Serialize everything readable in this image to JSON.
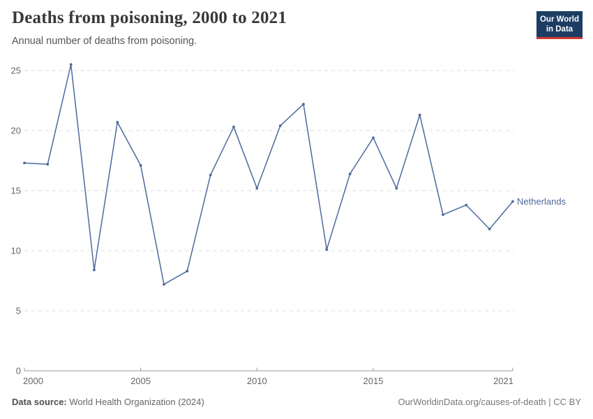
{
  "header": {
    "title": "Deaths from poisoning, 2000 to 2021",
    "subtitle": "Annual number of deaths from poisoning.",
    "logo": {
      "line1": "Our World",
      "line2": "in Data",
      "bg": "#1d3d63",
      "stripe": "#d0392e"
    }
  },
  "footer": {
    "source_label": "Data source:",
    "source_value": " World Health Organization (2024)",
    "link": "OurWorldinData.org/causes-of-death | CC BY"
  },
  "chart_data": {
    "type": "line",
    "title": "Deaths from poisoning, 2000 to 2021",
    "subtitle": "Annual number of deaths from poisoning.",
    "x": [
      2000,
      2001,
      2002,
      2003,
      2004,
      2005,
      2006,
      2007,
      2008,
      2009,
      2010,
      2011,
      2012,
      2013,
      2014,
      2015,
      2016,
      2017,
      2018,
      2019,
      2020,
      2021
    ],
    "series": [
      {
        "name": "Netherlands",
        "color": "#4C6A9C",
        "values": [
          17.3,
          17.2,
          25.5,
          8.4,
          20.7,
          17.1,
          7.2,
          8.3,
          16.3,
          20.3,
          15.2,
          20.4,
          22.2,
          10.1,
          16.4,
          19.4,
          15.2,
          21.3,
          13.0,
          13.8,
          11.8,
          14.1
        ]
      }
    ],
    "xticks": [
      2000,
      2005,
      2010,
      2015,
      2021
    ],
    "yticks": [
      0,
      5,
      10,
      15,
      20,
      25
    ],
    "xlim": [
      2000,
      2021
    ],
    "ylim": [
      0,
      26
    ],
    "grid": "horizontal-dashed",
    "legend_position": "end-of-line",
    "colors": {
      "line": "#4C6A9C",
      "grid": "#dddddd",
      "axis": "#999999",
      "tick_label": "#666666"
    }
  }
}
